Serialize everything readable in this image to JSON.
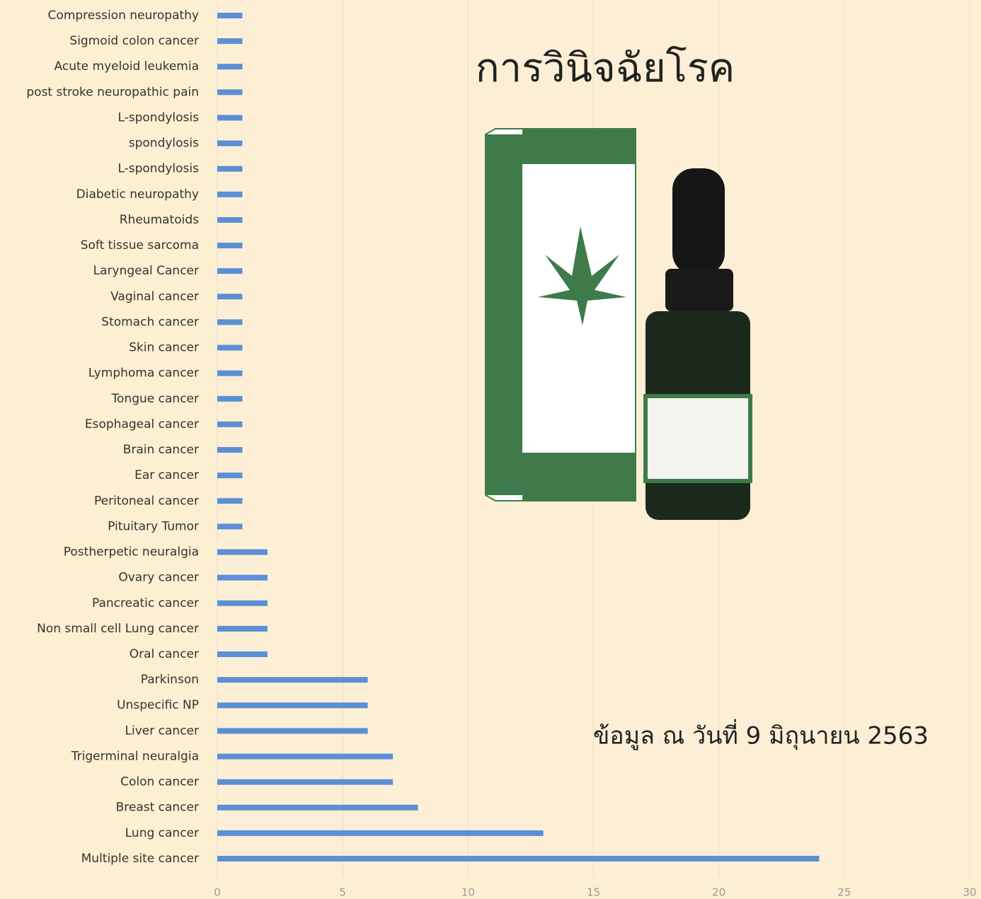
{
  "chart_data": {
    "type": "barh",
    "title": "การวินิจฉัยโรค",
    "annotation": "ข้อมูล ณ วันที่ 9 มิถุนายน 2563",
    "categories": [
      "Compression neuropathy",
      "Sigmoid colon cancer",
      "Acute myeloid leukemia",
      "post stroke neuropathic pain",
      "L-spondylosis",
      "spondylosis",
      "L-spondylosis",
      "Diabetic neuropathy",
      "Rheumatoids",
      "Soft tissue sarcoma",
      "Laryngeal Cancer",
      "Vaginal cancer",
      "Stomach cancer",
      "Skin cancer",
      "Lymphoma cancer",
      "Tongue cancer",
      "Esophageal cancer",
      "Brain cancer",
      "Ear cancer",
      "Peritoneal cancer",
      "Pituitary Tumor",
      "Postherpetic neuralgia",
      "Ovary cancer",
      "Pancreatic cancer",
      "Non small cell Lung cancer",
      "Oral cancer",
      "Parkinson",
      "Unspecific NP",
      "Liver cancer",
      "Trigerminal neuralgia",
      "Colon cancer",
      "Breast cancer",
      "Lung cancer",
      "Multiple site cancer"
    ],
    "values": [
      1,
      1,
      1,
      1,
      1,
      1,
      1,
      1,
      1,
      1,
      1,
      1,
      1,
      1,
      1,
      1,
      1,
      1,
      1,
      1,
      1,
      2,
      2,
      2,
      2,
      2,
      6,
      6,
      6,
      7,
      7,
      8,
      13,
      24
    ],
    "color": "#5b8fd6",
    "xlim": [
      0,
      30
    ],
    "xticks": [
      0,
      5,
      10,
      15,
      20,
      25,
      30
    ],
    "grid": true
  }
}
